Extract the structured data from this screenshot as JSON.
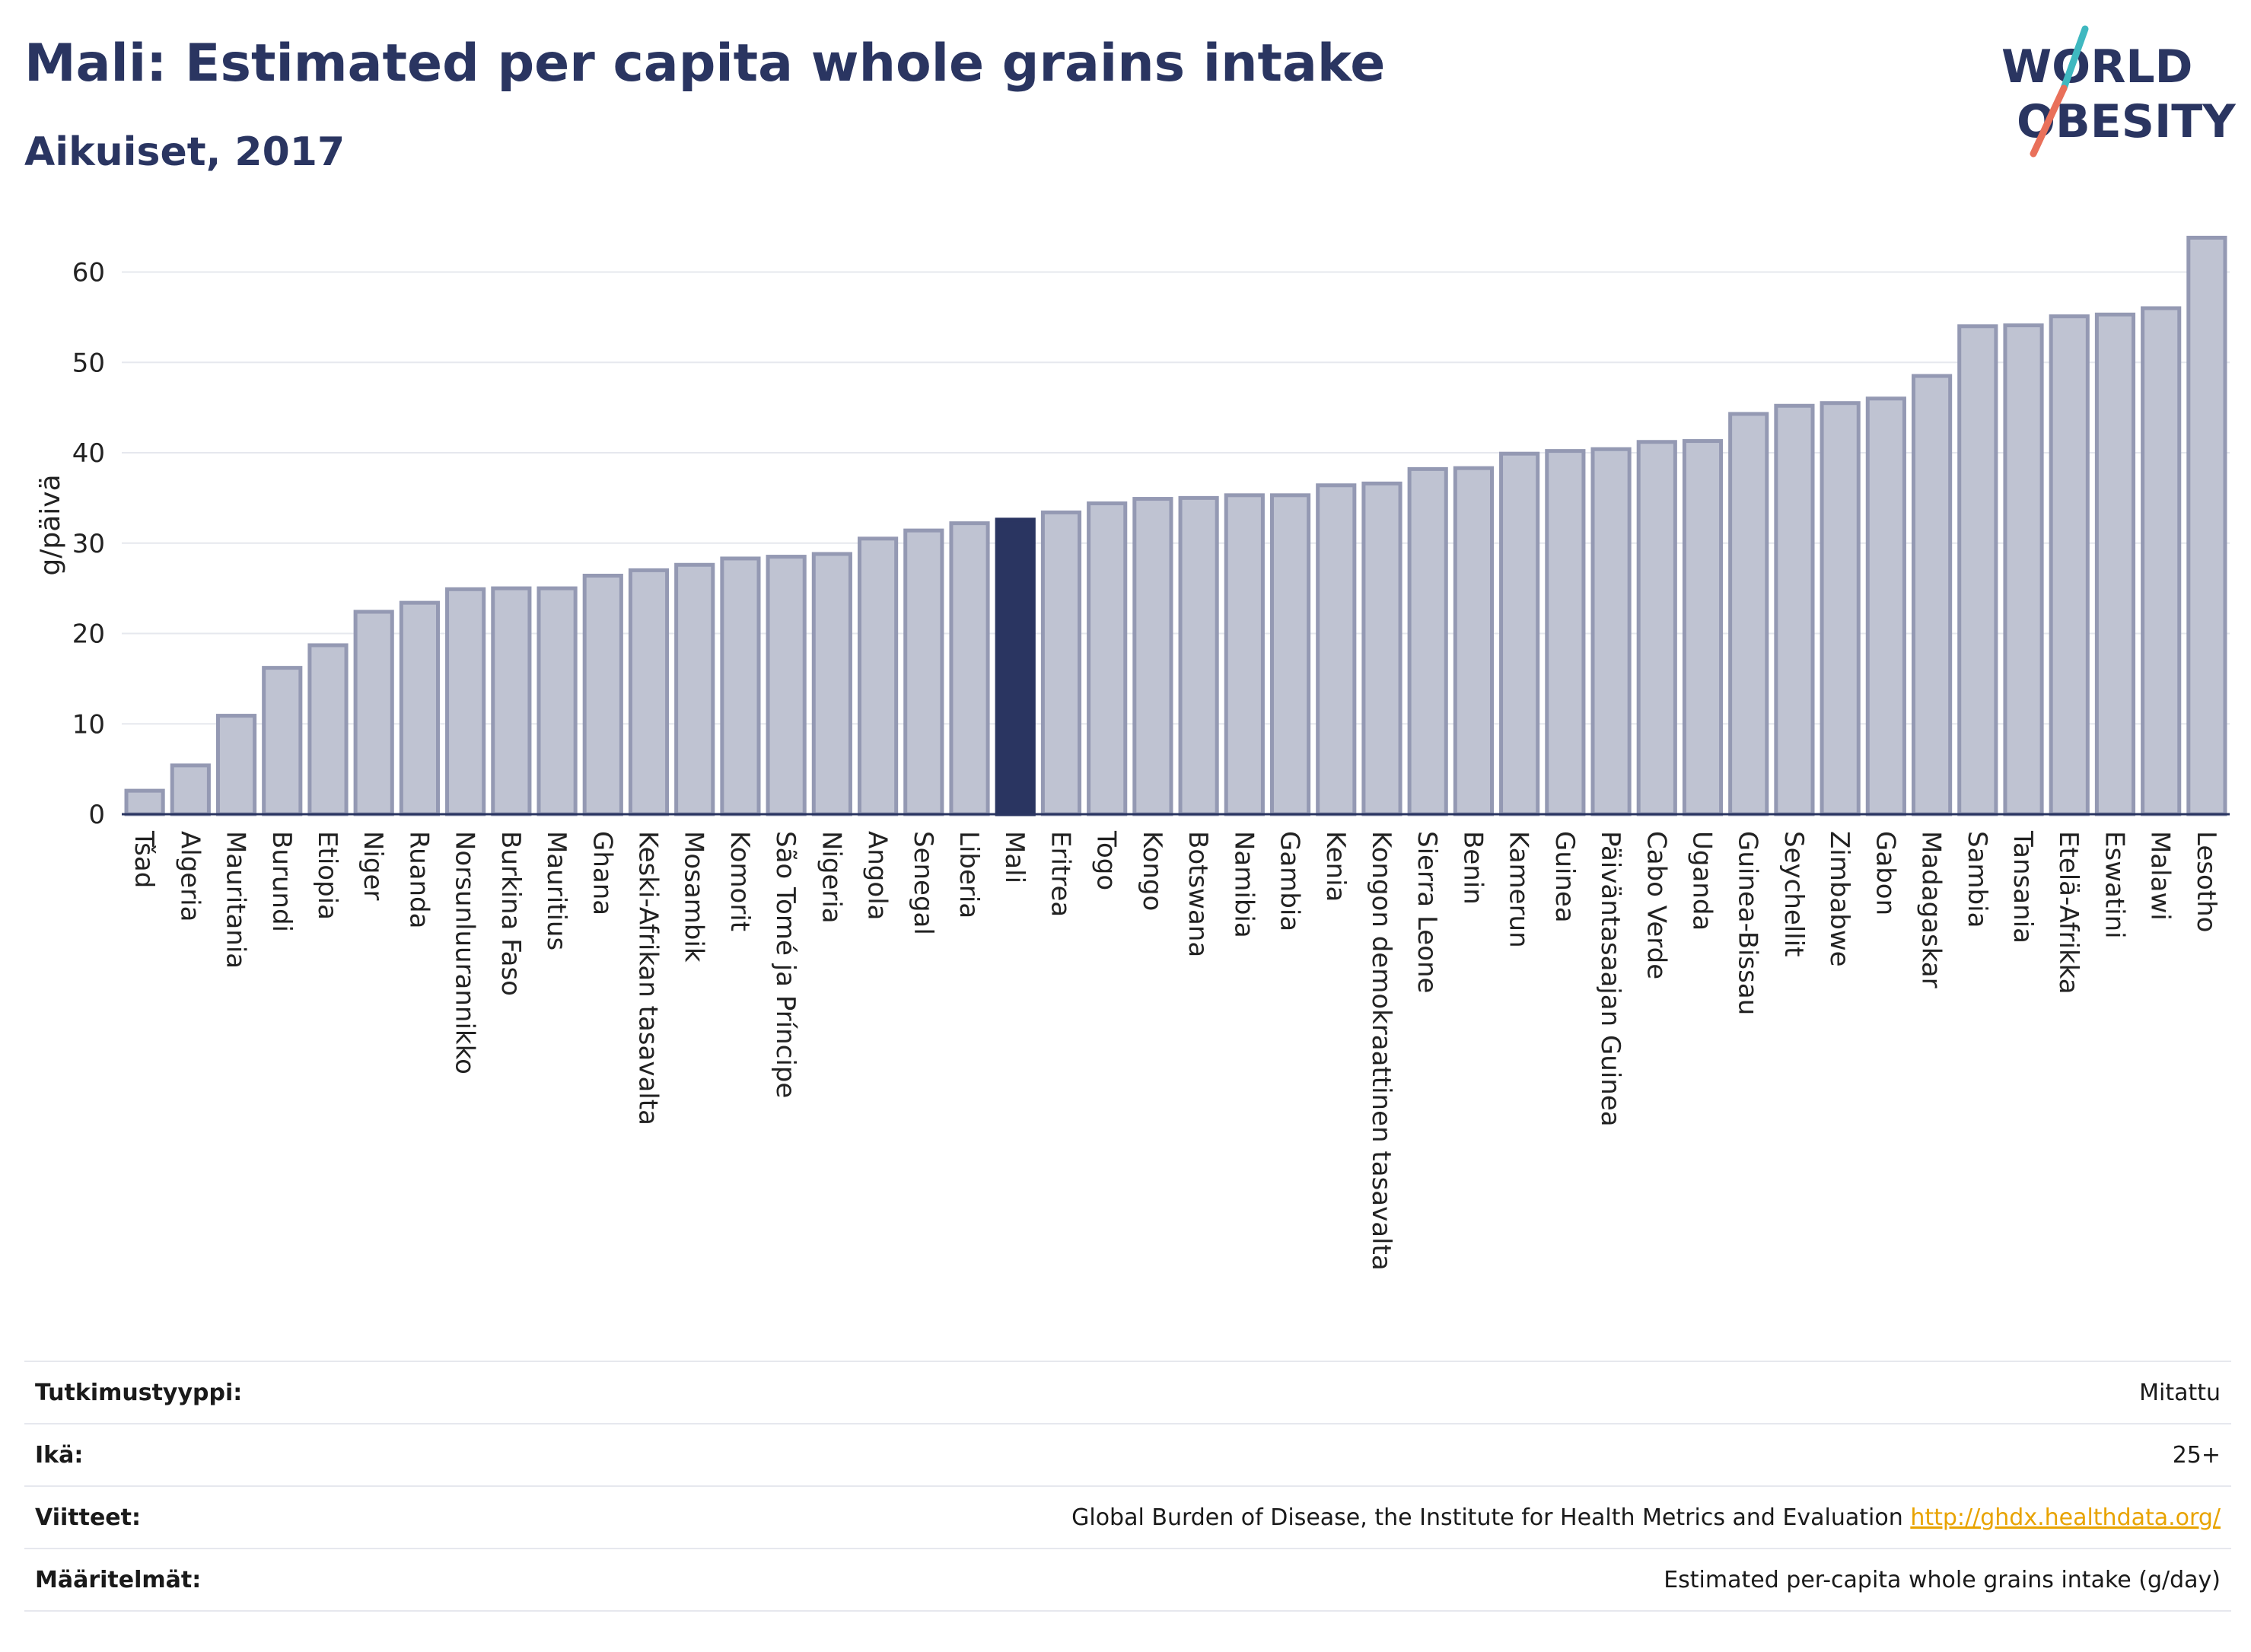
{
  "header": {
    "title": "Mali: Estimated per capita whole grains intake",
    "subtitle": "Aikuiset, 2017",
    "logo_line1": "WORLD",
    "logo_line2": "OBESITY"
  },
  "colors": {
    "bar": "#bfc3d2",
    "bar_stroke": "#9499b3",
    "highlight": "#2a3561",
    "grid": "#e6e8ee",
    "text": "#2a3561",
    "logo_teal": "#3fb8c0",
    "logo_coral": "#e9705a",
    "link": "#e8a300"
  },
  "chart_data": {
    "type": "bar",
    "ylabel": "g/päivä",
    "ylim": [
      0,
      64
    ],
    "yticks": [
      0,
      10,
      20,
      30,
      40,
      50,
      60
    ],
    "grid": true,
    "highlight": "Mali",
    "categories": [
      "Tšad",
      "Algeria",
      "Mauritania",
      "Burundi",
      "Etiopia",
      "Niger",
      "Ruanda",
      "Norsunluurannikko",
      "Burkina Faso",
      "Mauritius",
      "Ghana",
      "Keski-Afrikan tasavalta",
      "Mosambik",
      "Komorit",
      "São Tomé ja Príncipe",
      "Nigeria",
      "Angola",
      "Senegal",
      "Liberia",
      "Mali",
      "Eritrea",
      "Togo",
      "Kongo",
      "Botswana",
      "Namibia",
      "Gambia",
      "Kenia",
      "Kongon demokraattinen tasavalta",
      "Sierra Leone",
      "Benin",
      "Kamerun",
      "Guinea",
      "Päiväntasaajan Guinea",
      "Cabo Verde",
      "Uganda",
      "Guinea-Bissau",
      "Seychellit",
      "Zimbabwe",
      "Gabon",
      "Madagaskar",
      "Sambia",
      "Tansania",
      "Etelä-Afrikka",
      "Eswatini",
      "Malawi",
      "Lesotho"
    ],
    "values": [
      2.6,
      5.4,
      10.9,
      16.2,
      18.7,
      22.4,
      23.4,
      24.9,
      25.0,
      25.0,
      26.4,
      27.0,
      27.6,
      28.3,
      28.5,
      28.8,
      30.5,
      31.4,
      32.2,
      32.6,
      33.4,
      34.4,
      34.9,
      35.0,
      35.3,
      35.3,
      36.4,
      36.6,
      38.2,
      38.3,
      39.9,
      40.2,
      40.4,
      41.2,
      41.3,
      44.3,
      45.2,
      45.5,
      46.0,
      48.5,
      54.0,
      54.1,
      55.1,
      55.3,
      56.0,
      63.8
    ]
  },
  "meta": [
    {
      "label": "Tutkimustyyppi:",
      "value": "Mitattu"
    },
    {
      "label": "Ikä:",
      "value": "25+"
    },
    {
      "label": "Viitteet:",
      "value": "Global Burden of Disease, the Institute for Health Metrics and Evaluation",
      "link": "http://ghdx.healthdata.org/"
    },
    {
      "label": "Määritelmät:",
      "value": "Estimated per-capita whole grains intake (g/day)"
    }
  ]
}
